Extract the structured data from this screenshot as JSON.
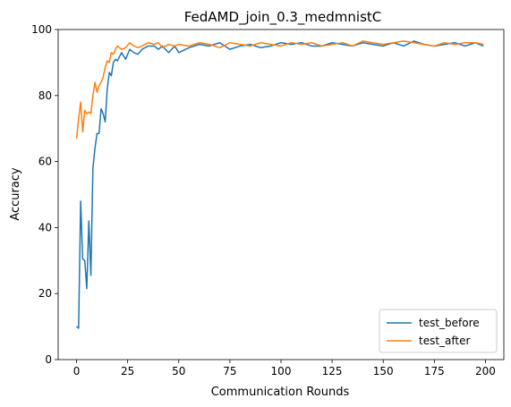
{
  "chart_data": {
    "type": "line",
    "title": "FedAMD_join_0.3_medmnistC",
    "xlabel": "Communication Rounds",
    "ylabel": "Accuracy",
    "xlim": [
      -9,
      209
    ],
    "ylim": [
      0,
      100
    ],
    "xticks": [
      0,
      25,
      50,
      75,
      100,
      125,
      150,
      175,
      200
    ],
    "yticks": [
      0,
      20,
      40,
      60,
      80,
      100
    ],
    "grid": false,
    "legend_position": "lower-right",
    "series": [
      {
        "name": "test_before",
        "color": "#1f77b4",
        "x": [
          0,
          1,
          2,
          3,
          4,
          5,
          6,
          7,
          8,
          9,
          10,
          11,
          12,
          13,
          14,
          15,
          16,
          17,
          18,
          19,
          20,
          22,
          24,
          26,
          28,
          30,
          32,
          35,
          38,
          40,
          42,
          45,
          48,
          50,
          55,
          60,
          65,
          70,
          75,
          80,
          85,
          90,
          95,
          100,
          105,
          110,
          115,
          120,
          125,
          130,
          135,
          140,
          145,
          150,
          155,
          160,
          165,
          170,
          175,
          180,
          185,
          190,
          195,
          199
        ],
        "y": [
          10,
          9.5,
          48,
          30.5,
          30,
          21.5,
          42,
          25.5,
          58,
          64,
          68.5,
          68.5,
          76,
          74.5,
          72,
          82,
          87,
          86,
          90,
          91,
          90.5,
          93,
          91,
          94,
          93,
          92.5,
          94,
          95,
          95,
          94,
          95,
          93,
          95,
          93,
          94.5,
          95.5,
          95,
          96,
          94,
          95,
          95.5,
          94.5,
          95,
          96,
          95.5,
          96,
          95,
          95,
          96,
          95.5,
          95,
          96,
          95.5,
          95,
          96,
          95,
          96.5,
          95.5,
          95,
          95.5,
          96,
          95,
          96,
          95
        ]
      },
      {
        "name": "test_after",
        "color": "#ff7f0e",
        "x": [
          0,
          1,
          2,
          3,
          4,
          5,
          6,
          7,
          8,
          9,
          10,
          11,
          12,
          13,
          14,
          15,
          16,
          17,
          18,
          19,
          20,
          22,
          24,
          26,
          28,
          30,
          32,
          35,
          38,
          40,
          42,
          45,
          48,
          50,
          55,
          60,
          65,
          70,
          75,
          80,
          85,
          90,
          95,
          100,
          105,
          110,
          115,
          120,
          125,
          130,
          135,
          140,
          145,
          150,
          155,
          160,
          165,
          170,
          175,
          180,
          185,
          190,
          195,
          199
        ],
        "y": [
          67,
          73,
          78,
          69,
          75.5,
          74.5,
          75,
          74.5,
          80,
          84,
          81,
          83,
          84,
          85.5,
          88.5,
          90.5,
          90,
          93,
          92.5,
          94,
          95,
          94,
          94.5,
          96,
          95,
          94.5,
          95,
          96,
          95.5,
          96,
          94.5,
          95.5,
          95,
          95.5,
          95,
          96,
          95.5,
          94.5,
          96,
          95.5,
          95,
          96,
          95.5,
          95,
          96,
          95.5,
          96,
          95,
          95.5,
          96,
          95,
          96.5,
          96,
          95.5,
          96,
          96.5,
          96,
          95.5,
          95,
          96,
          95.5,
          96,
          96,
          95.5
        ]
      }
    ]
  }
}
